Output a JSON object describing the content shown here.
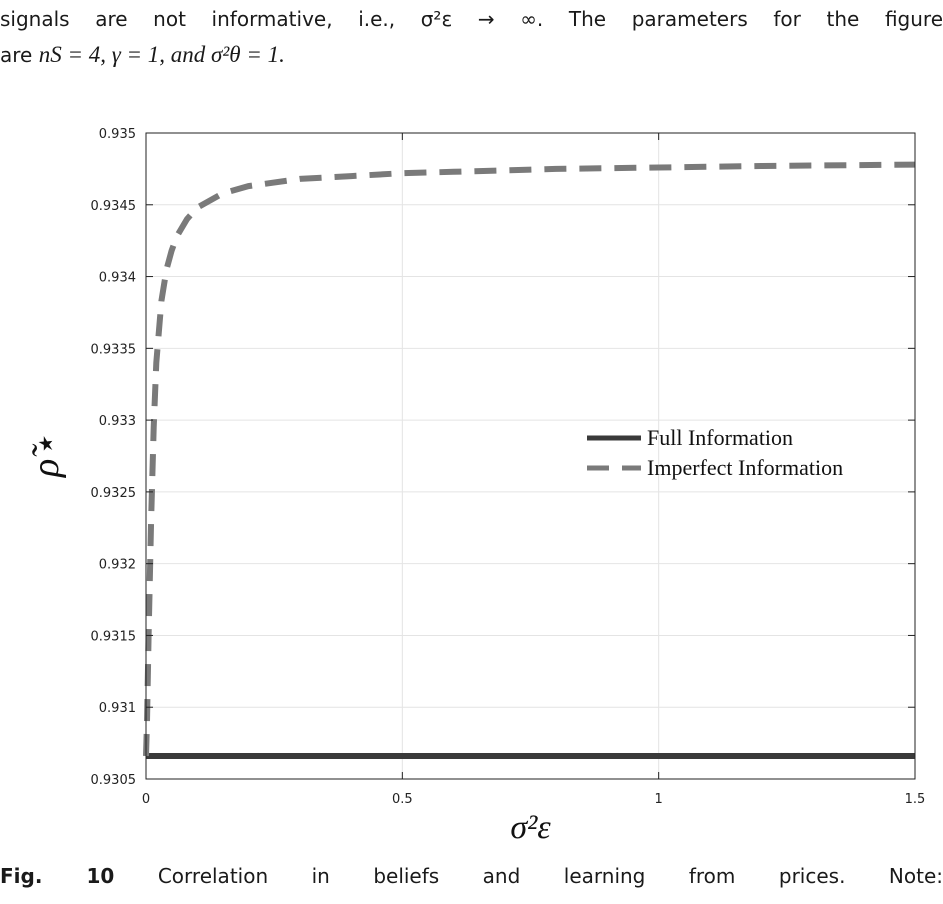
{
  "intro": {
    "line1": "signals are not informative, i.e., σ²ε → ∞. The parameters for the figure",
    "line2_prefix": "are",
    "params": "nS = 4, γ = 1, and σ²θ = 1."
  },
  "caption": {
    "label": "Fig. 10",
    "text": "Correlation in beliefs and learning from prices. Note:"
  },
  "chart_data": {
    "type": "line",
    "xlabel": "σ²ε",
    "ylabel": "ρ̃⋆",
    "xlim": [
      0,
      1.5
    ],
    "ylim": [
      0.9305,
      0.935
    ],
    "grid": true,
    "legend_position": "center-right",
    "x_ticks": [
      "0",
      "0.5",
      "1",
      "1.5"
    ],
    "y_ticks": [
      "0.9305",
      "0.931",
      "0.9315",
      "0.932",
      "0.9325",
      "0.933",
      "0.9335",
      "0.934",
      "0.9345",
      "0.935"
    ],
    "series": [
      {
        "name": "Full Information",
        "style": "solid",
        "color": "#3a3a3a",
        "x": [
          0,
          1.5
        ],
        "y": [
          0.93066,
          0.93066
        ]
      },
      {
        "name": "Imperfect Information",
        "style": "dashed",
        "color": "#7a7a7a",
        "x": [
          0,
          0.002,
          0.005,
          0.01,
          0.015,
          0.02,
          0.03,
          0.04,
          0.05,
          0.06,
          0.08,
          0.1,
          0.15,
          0.2,
          0.3,
          0.4,
          0.5,
          0.6,
          0.8,
          1.0,
          1.2,
          1.5
        ],
        "y": [
          0.93066,
          0.9309,
          0.9315,
          0.9323,
          0.93295,
          0.9334,
          0.93383,
          0.93405,
          0.93418,
          0.93428,
          0.9344,
          0.93448,
          0.93458,
          0.93463,
          0.93468,
          0.9347,
          0.93472,
          0.93473,
          0.93475,
          0.93476,
          0.93477,
          0.93478
        ]
      }
    ]
  }
}
